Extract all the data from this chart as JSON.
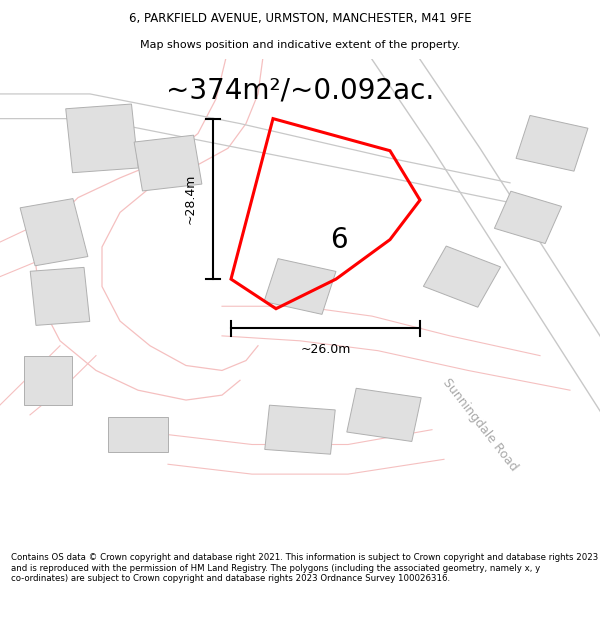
{
  "title_line1": "6, PARKFIELD AVENUE, URMSTON, MANCHESTER, M41 9FE",
  "title_line2": "Map shows position and indicative extent of the property.",
  "area_text": "~374m²/~0.092ac.",
  "footer_text": "Contains OS data © Crown copyright and database right 2021. This information is subject to Crown copyright and database rights 2023 and is reproduced with the permission of HM Land Registry. The polygons (including the associated geometry, namely x, y co-ordinates) are subject to Crown copyright and database rights 2023 Ordnance Survey 100026316.",
  "background_color": "#ffffff",
  "map_bg": "#ffffff",
  "property_color": "#ff0000",
  "property_label": "6",
  "dim_v_label": "~28.4m",
  "dim_h_label": "~26.0m",
  "road_pink": "#f5c0c0",
  "road_gray": "#c8c8c8",
  "building_face": "#e0e0e0",
  "building_edge": "#b0b0b0"
}
